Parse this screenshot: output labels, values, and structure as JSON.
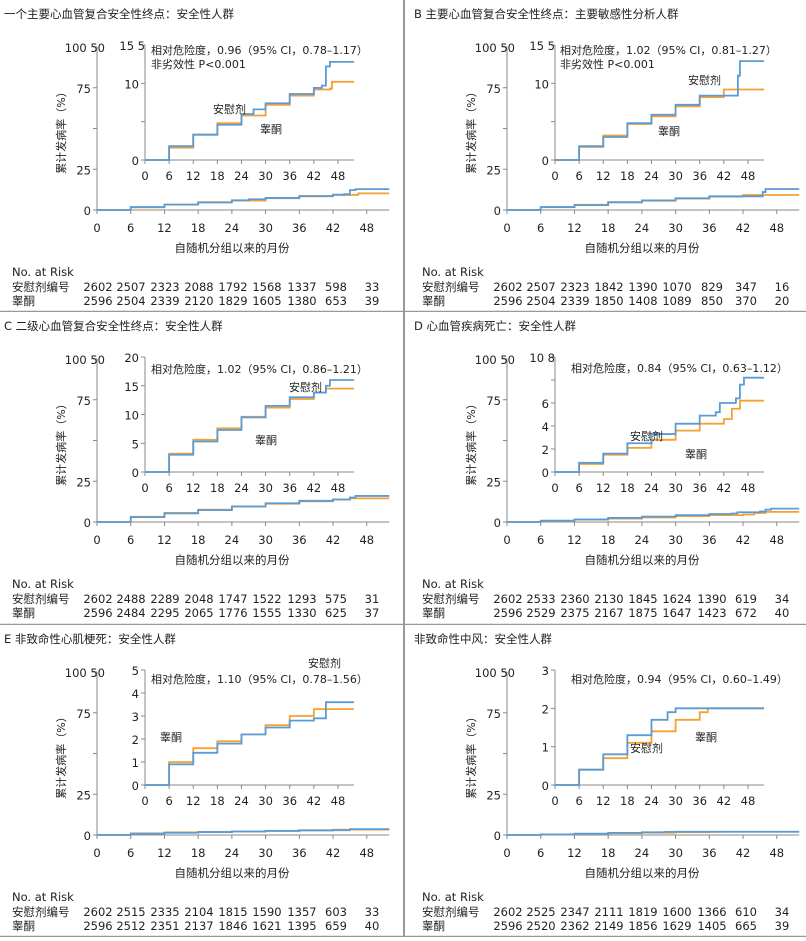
{
  "colors": {
    "placebo": "#5b9bd5",
    "testosterone": "#f5a031",
    "axis": "#888888"
  },
  "common": {
    "ylabel": "累计发病率（%）",
    "xlabel": "自随机分组以来的月份",
    "x_ticks": [
      0,
      6,
      12,
      18,
      24,
      30,
      36,
      42,
      48
    ],
    "main_y_ticks": [
      0,
      25,
      50,
      75,
      100
    ],
    "main_y_tick_labels": [
      "0",
      "25",
      "",
      "75",
      "100 50"
    ],
    "risk_header": "No. at Risk",
    "risk_row_labels": [
      "安慰剂编号",
      "睾酮"
    ],
    "placebo_label": "安慰剂",
    "testosterone_label": "睾酮"
  },
  "chart_data": [
    {
      "type": "line",
      "title": "一个主要心血管复合安全性终点：安全性人群",
      "hazard_text": [
        "相对危险度，0.96（95% CI，0.78–1.17）",
        "非劣效性 P<0.001"
      ],
      "inset_ylim": [
        0,
        15
      ],
      "inset_y_ticks": [
        0,
        5,
        10,
        15
      ],
      "inset_y_tick_labels": [
        "0",
        "",
        "10",
        "15 5"
      ],
      "main_ylim": [
        0,
        100
      ],
      "xlim": [
        0,
        52
      ],
      "series": [
        {
          "name": "安慰剂",
          "x": [
            0,
            6,
            12,
            18,
            24,
            27,
            30,
            36,
            42,
            44,
            45,
            46,
            52
          ],
          "y": [
            0,
            1.8,
            3.3,
            4.6,
            6.0,
            6.6,
            7.4,
            8.6,
            9.4,
            9.7,
            12.2,
            12.8,
            12.8
          ]
        },
        {
          "name": "睾酮",
          "x": [
            0,
            6,
            12,
            18,
            24,
            30,
            36,
            42,
            46,
            46.5,
            52
          ],
          "y": [
            0,
            1.6,
            3.3,
            4.8,
            5.8,
            7.2,
            8.4,
            9.2,
            9.3,
            10.2,
            10.2
          ]
        }
      ],
      "risk": [
        [
          2602,
          2507,
          2323,
          2088,
          1792,
          1568,
          1337,
          598,
          33
        ],
        [
          2596,
          2504,
          2339,
          2120,
          1829,
          1605,
          1380,
          653,
          39
        ]
      ]
    },
    {
      "type": "line",
      "title": "B 主要心血管复合安全性终点：主要敏感性分析人群",
      "hazard_text": [
        "相对危险度，1.02（95% CI，0.81–1.27）",
        "非劣效性 P<0.001"
      ],
      "inset_ylim": [
        0,
        15
      ],
      "inset_y_ticks": [
        0,
        5,
        10,
        15
      ],
      "inset_y_tick_labels": [
        "0",
        "",
        "10",
        "15 5"
      ],
      "main_ylim": [
        0,
        100
      ],
      "xlim": [
        0,
        52
      ],
      "series": [
        {
          "name": "安慰剂",
          "x": [
            0,
            6,
            12,
            18,
            24,
            30,
            36,
            42,
            45,
            45.5,
            46,
            52
          ],
          "y": [
            0,
            1.8,
            3.0,
            4.8,
            5.9,
            7.2,
            8.4,
            8.4,
            8.4,
            11,
            12.9,
            12.9
          ]
        },
        {
          "name": "睾酮",
          "x": [
            0,
            6,
            12,
            18,
            24,
            30,
            36,
            42,
            52
          ],
          "y": [
            0,
            1.7,
            3.2,
            4.7,
            5.7,
            7.0,
            8.2,
            9.2,
            9.2
          ]
        }
      ],
      "risk": [
        [
          2602,
          2507,
          2323,
          1842,
          1390,
          1070,
          829,
          347,
          16
        ],
        [
          2596,
          2504,
          2339,
          1850,
          1408,
          1089,
          850,
          370,
          20
        ]
      ]
    },
    {
      "type": "line",
      "title": "C 二级心血管复合安全性终点：安全性人群",
      "hazard_text": [
        "相对危险度，1.02（95% CI，0.86–1.21）"
      ],
      "inset_ylim": [
        0,
        20
      ],
      "inset_y_ticks": [
        0,
        5,
        10,
        15,
        20
      ],
      "inset_y_tick_labels": [
        "0",
        "5",
        "10",
        "15",
        "20"
      ],
      "main_ylim": [
        0,
        100
      ],
      "xlim": [
        0,
        52
      ],
      "series": [
        {
          "name": "安慰剂",
          "x": [
            0,
            6,
            12,
            18,
            24,
            30,
            36,
            42,
            45,
            46,
            52
          ],
          "y": [
            0,
            3,
            5.3,
            7.3,
            9.5,
            11.5,
            13,
            13.8,
            15,
            16,
            16
          ]
        },
        {
          "name": "睾酮",
          "x": [
            0,
            6,
            12,
            18,
            24,
            30,
            36,
            42,
            45,
            52
          ],
          "y": [
            0,
            3.2,
            5.6,
            7.6,
            9.6,
            11.2,
            12.7,
            13.8,
            14.5,
            14.5
          ]
        }
      ],
      "risk": [
        [
          2602,
          2488,
          2289,
          2048,
          1747,
          1522,
          1293,
          575,
          31
        ],
        [
          2596,
          2484,
          2295,
          2065,
          1776,
          1555,
          1330,
          625,
          37
        ]
      ]
    },
    {
      "type": "line",
      "title": "D 心血管疾病死亡：安全性人群",
      "hazard_text": [
        "相对危险度，0.84（95% CI，0.63–1.12）"
      ],
      "inset_ylim": [
        0,
        10
      ],
      "inset_y_ticks": [
        0,
        2,
        4,
        6,
        8,
        10
      ],
      "inset_y_tick_labels": [
        "0",
        "2",
        "4",
        "6",
        "",
        "10 8"
      ],
      "main_ylim": [
        0,
        100
      ],
      "xlim": [
        0,
        52
      ],
      "series": [
        {
          "name": "安慰剂",
          "x": [
            0,
            6,
            12,
            18,
            24,
            30,
            36,
            40,
            41,
            45,
            46,
            47,
            52
          ],
          "y": [
            0,
            0.8,
            1.6,
            2.5,
            3.3,
            4.2,
            4.9,
            5.2,
            6.0,
            6.4,
            7.6,
            8.2,
            8.2
          ]
        },
        {
          "name": "睾酮",
          "x": [
            0,
            6,
            12,
            18,
            24,
            30,
            36,
            42,
            44,
            46,
            52
          ],
          "y": [
            0,
            0.7,
            1.5,
            2.1,
            2.8,
            3.6,
            4.2,
            4.6,
            5.5,
            6.2,
            6.2
          ]
        }
      ],
      "risk": [
        [
          2602,
          2533,
          2360,
          2130,
          1845,
          1624,
          1390,
          619,
          34
        ],
        [
          2596,
          2529,
          2375,
          2167,
          1875,
          1647,
          1423,
          672,
          40
        ]
      ]
    },
    {
      "type": "line",
      "title": "E 非致命性心肌梗死：安全性人群",
      "hazard_text": [
        "相对危险度，1.10（95% CI，0.78–1.56）"
      ],
      "inset_ylim": [
        0,
        5
      ],
      "inset_y_ticks": [
        0,
        1,
        2,
        3,
        4,
        5
      ],
      "inset_y_tick_labels": [
        "0",
        "1",
        "2",
        "3",
        "4",
        "5"
      ],
      "main_ylim": [
        0,
        100
      ],
      "xlim": [
        0,
        52
      ],
      "series": [
        {
          "name": "安慰剂",
          "x": [
            0,
            6,
            12,
            18,
            24,
            30,
            36,
            42,
            44,
            45,
            52
          ],
          "y": [
            0,
            0.9,
            1.4,
            1.8,
            2.2,
            2.5,
            2.8,
            2.9,
            2.9,
            3.6,
            3.6
          ]
        },
        {
          "name": "睾酮",
          "x": [
            0,
            6,
            12,
            18,
            24,
            30,
            36,
            42,
            52
          ],
          "y": [
            0,
            1.0,
            1.6,
            1.9,
            2.2,
            2.6,
            3.0,
            3.3,
            3.3
          ]
        }
      ],
      "risk": [
        [
          2602,
          2515,
          2335,
          2104,
          1815,
          1590,
          1357,
          603,
          33
        ],
        [
          2596,
          2512,
          2351,
          2137,
          1846,
          1621,
          1395,
          659,
          40
        ]
      ]
    },
    {
      "type": "line",
      "title": "非致命性中风：安全性人群",
      "hazard_text": [
        "相对危险度，0.94（95% CI，0.60–1.49）"
      ],
      "inset_ylim": [
        0,
        3
      ],
      "inset_y_ticks": [
        0,
        1,
        2,
        3
      ],
      "inset_y_tick_labels": [
        "0",
        "1",
        "2",
        "3"
      ],
      "main_ylim": [
        0,
        100
      ],
      "xlim": [
        0,
        52
      ],
      "series": [
        {
          "name": "安慰剂",
          "x": [
            0,
            6,
            12,
            18,
            24,
            28,
            30,
            52
          ],
          "y": [
            0,
            0.4,
            0.8,
            1.3,
            1.7,
            1.9,
            2.0,
            2.0
          ]
        },
        {
          "name": "睾酮",
          "x": [
            0,
            6,
            12,
            18,
            24,
            30,
            36,
            38,
            52
          ],
          "y": [
            0,
            0.4,
            0.7,
            1.1,
            1.4,
            1.7,
            1.9,
            2.0,
            2.0
          ]
        }
      ],
      "risk": [
        [
          2602,
          2525,
          2347,
          2111,
          1819,
          1600,
          1366,
          610,
          34
        ],
        [
          2596,
          2520,
          2362,
          2149,
          1856,
          1629,
          1405,
          665,
          39
        ]
      ]
    }
  ]
}
